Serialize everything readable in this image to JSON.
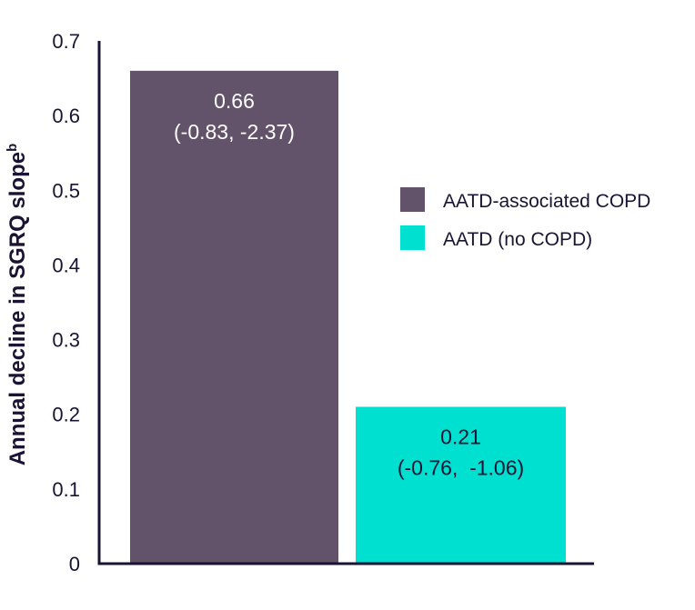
{
  "chart_data": {
    "type": "bar",
    "ylabel": "Annual decline in SGRQ slope",
    "ylabel_superscript": "b",
    "ylim": [
      0,
      0.7
    ],
    "yticks": [
      "0",
      "0.1",
      "0.2",
      "0.3",
      "0.4",
      "0.5",
      "0.6",
      "0.7"
    ],
    "grid": false,
    "legend_position": "right",
    "series": [
      {
        "name": "AATD-associated COPD",
        "value": 0.66,
        "label_value": "0.66",
        "label_ci": "(-0.83, -2.37)",
        "color": "#62536b",
        "label_color": "#ffffff"
      },
      {
        "name": "AATD (no COPD)",
        "value": 0.21,
        "label_value": "0.21",
        "label_ci": "(-0.76,  -1.06)",
        "color": "#00e0d0",
        "label_color": "#1a1333"
      }
    ],
    "axis_color": "#1a1333"
  }
}
